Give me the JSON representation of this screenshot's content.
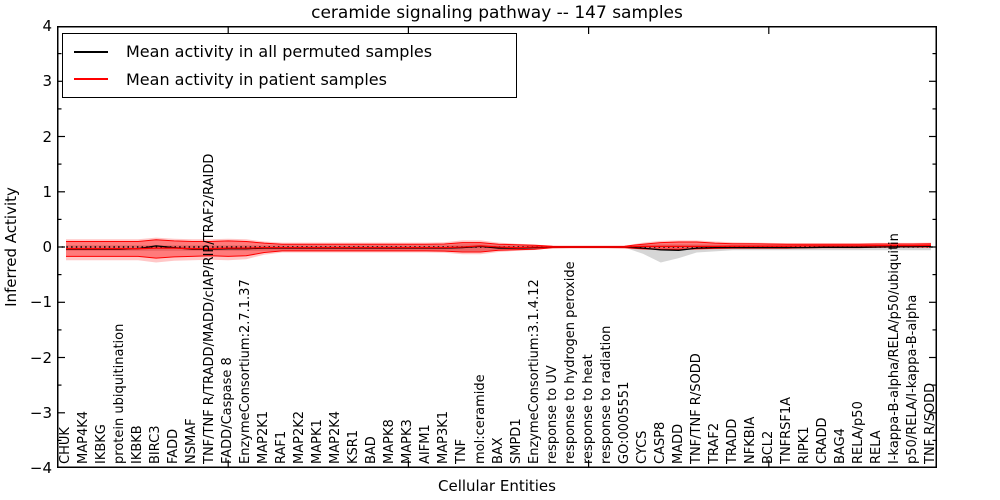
{
  "page": {
    "title": "ceramide signaling pathway -- 147 samples"
  },
  "axes": {
    "xlabel": "Cellular Entities",
    "ylabel": "Inferred Activity",
    "ytick_labels": [
      "4",
      "3",
      "2",
      "1",
      "0",
      "−1",
      "−2",
      "−3",
      "−4"
    ]
  },
  "legend": {
    "entries": [
      {
        "label": "Mean activity in all permuted samples",
        "color": "#000000"
      },
      {
        "label": "Mean activity in patient samples",
        "color": "#ff0000"
      }
    ],
    "position": "upper left"
  },
  "chart_data": {
    "type": "line",
    "title": "ceramide signaling pathway -- 147 samples",
    "xlabel": "Cellular Entities",
    "ylabel": "Inferred Activity",
    "ylim": [
      -4,
      4
    ],
    "yticks": [
      4,
      3,
      2,
      1,
      0,
      -1,
      -2,
      -3,
      -4
    ],
    "y_minor_tick_step": 0.5,
    "x_major_tick_values": [
      10,
      20,
      30,
      40
    ],
    "grid": false,
    "legend_position": "upper left",
    "zero_line": {
      "y": 0,
      "style": "dotted",
      "color": "#000000"
    },
    "categories": [
      "CHUK",
      "MAP4K4",
      "IKBKG",
      "protein ubiquitination",
      "IKBKB",
      "BIRC3",
      "FADD",
      "NSMAF",
      "TNF/TNF R/TRADD/MADD/cIAP/RIP/TRAF2/RAIDD",
      "FADD/Caspase 8",
      "EnzymeConsortium:2.7.1.37",
      "MAP2K1",
      "RAF1",
      "MAP2K2",
      "MAPK1",
      "MAP2K4",
      "KSR1",
      "BAD",
      "MAPK8",
      "MAPK3",
      "AIFM1",
      "MAP3K1",
      "TNF",
      "mol:ceramide",
      "BAX",
      "SMPD1",
      "EnzymeConsortium:3.1.4.12",
      "response to UV",
      "response to hydrogen peroxide",
      "response to heat",
      "response to radiation",
      "GO:0005551",
      "CYCS",
      "CASP8",
      "MADD",
      "TNF/TNF R/SODD",
      "TRAF2",
      "TRADD",
      "NFKBIA",
      "BCL2",
      "TNFRSF1A",
      "RIPK1",
      "CRADD",
      "BAG4",
      "RELA/p50",
      "RELA",
      "I-kappa-B-alpha/RELA/p50/ubiquitin",
      "p50/RELA/I-kappa-B-alpha",
      "TNF R/SODD"
    ],
    "series": [
      {
        "name": "Mean activity in all permuted samples",
        "color": "#000000",
        "values": [
          -0.04,
          -0.04,
          -0.04,
          -0.04,
          -0.03,
          0.02,
          -0.01,
          -0.04,
          -0.04,
          -0.03,
          -0.03,
          -0.02,
          -0.02,
          -0.02,
          -0.02,
          -0.02,
          -0.02,
          -0.02,
          -0.02,
          -0.02,
          -0.02,
          -0.02,
          -0.01,
          0.01,
          -0.02,
          -0.02,
          -0.01,
          0,
          0,
          0,
          0,
          0,
          -0.02,
          -0.05,
          -0.06,
          -0.02,
          -0.01,
          -0.01,
          -0.01,
          -0.01,
          -0.01,
          -0.01,
          -0.005,
          -0.005,
          -0.005,
          0,
          0.005,
          0.005,
          0.01
        ]
      },
      {
        "name": "Mean activity in patient samples",
        "color": "#ff0000",
        "values": [
          -0.03,
          -0.03,
          -0.03,
          -0.03,
          -0.03,
          -0.02,
          -0.02,
          -0.03,
          -0.03,
          -0.02,
          -0.02,
          -0.01,
          -0.01,
          -0.01,
          -0.01,
          -0.01,
          -0.01,
          -0.01,
          -0.01,
          -0.01,
          -0.01,
          -0.01,
          0,
          0.02,
          0,
          -0.01,
          0,
          0,
          0,
          0,
          0,
          0,
          0.01,
          0.01,
          0.01,
          0.01,
          0.01,
          0.015,
          0.015,
          0.015,
          0.015,
          0.02,
          0.02,
          0.02,
          0.02,
          0.025,
          0.025,
          0.025,
          0.03
        ]
      }
    ],
    "bands": [
      {
        "name": "permuted-samples-std-band",
        "color": "rgba(0,0,0,0.16)",
        "upper": [
          0.03,
          0.03,
          0.03,
          0.03,
          0.03,
          0.03,
          0.03,
          0.03,
          0.03,
          0.03,
          0.03,
          0.03,
          0.03,
          0.03,
          0.03,
          0.03,
          0.03,
          0.03,
          0.03,
          0.03,
          0.03,
          0.03,
          0.05,
          0.05,
          0.03,
          0.03,
          0.03,
          0.01,
          0.01,
          0.01,
          0.01,
          0.01,
          0.04,
          0.05,
          0.05,
          0.05,
          0.045,
          0.04,
          0.04,
          0.04,
          0.04,
          0.04,
          0.04,
          0.04,
          0.04,
          0.04,
          0.04,
          0.04,
          0.04
        ],
        "lower": [
          -0.07,
          -0.07,
          -0.07,
          -0.07,
          -0.07,
          -0.07,
          -0.07,
          -0.07,
          -0.07,
          -0.07,
          -0.07,
          -0.07,
          -0.07,
          -0.07,
          -0.07,
          -0.07,
          -0.07,
          -0.07,
          -0.07,
          -0.07,
          -0.07,
          -0.07,
          -0.08,
          -0.08,
          -0.05,
          -0.05,
          -0.05,
          -0.01,
          -0.01,
          -0.01,
          -0.01,
          -0.01,
          -0.12,
          -0.28,
          -0.2,
          -0.1,
          -0.08,
          -0.06,
          -0.06,
          -0.06,
          -0.06,
          -0.06,
          -0.06,
          -0.06,
          -0.06,
          -0.06,
          -0.06,
          -0.06,
          -0.06
        ]
      },
      {
        "name": "patient-samples-outer-band",
        "color": "rgba(255,0,0,0.22)",
        "upper": [
          0.14,
          0.14,
          0.14,
          0.14,
          0.14,
          0.17,
          0.15,
          0.14,
          0.14,
          0.15,
          0.14,
          0.1,
          0.08,
          0.08,
          0.08,
          0.08,
          0.08,
          0.08,
          0.08,
          0.08,
          0.08,
          0.085,
          0.12,
          0.12,
          0.08,
          0.06,
          0.045,
          0.02,
          0.015,
          0.015,
          0.015,
          0.02,
          0.08,
          0.11,
          0.12,
          0.12,
          0.1,
          0.085,
          0.08,
          0.075,
          0.07,
          0.07,
          0.07,
          0.07,
          0.07,
          0.075,
          0.075,
          0.075,
          0.08
        ],
        "lower": [
          -0.24,
          -0.24,
          -0.24,
          -0.24,
          -0.24,
          -0.28,
          -0.25,
          -0.24,
          -0.23,
          -0.24,
          -0.22,
          -0.14,
          -0.1,
          -0.1,
          -0.1,
          -0.1,
          -0.1,
          -0.1,
          -0.1,
          -0.1,
          -0.1,
          -0.105,
          -0.13,
          -0.13,
          -0.09,
          -0.07,
          -0.055,
          -0.02,
          -0.015,
          -0.015,
          -0.015,
          -0.02,
          -0.05,
          -0.06,
          -0.06,
          -0.05,
          -0.04,
          -0.035,
          -0.03,
          -0.03,
          -0.03,
          -0.025,
          -0.02,
          -0.02,
          -0.02,
          -0.015,
          -0.01,
          -0.01,
          -0.01
        ]
      },
      {
        "name": "patient-samples-inner-band",
        "color": "rgba(255,0,0,0.38)",
        "edge": "#ff0000",
        "upper": [
          0.1,
          0.1,
          0.1,
          0.1,
          0.1,
          0.13,
          0.11,
          0.1,
          0.1,
          0.11,
          0.1,
          0.07,
          0.05,
          0.05,
          0.05,
          0.05,
          0.05,
          0.05,
          0.05,
          0.05,
          0.05,
          0.055,
          0.08,
          0.08,
          0.05,
          0.04,
          0.03,
          0.015,
          0.01,
          0.01,
          0.01,
          0.015,
          0.05,
          0.08,
          0.09,
          0.09,
          0.07,
          0.06,
          0.06,
          0.055,
          0.05,
          0.05,
          0.05,
          0.05,
          0.05,
          0.055,
          0.055,
          0.055,
          0.06
        ],
        "lower": [
          -0.17,
          -0.17,
          -0.17,
          -0.17,
          -0.17,
          -0.2,
          -0.18,
          -0.17,
          -0.16,
          -0.17,
          -0.16,
          -0.1,
          -0.07,
          -0.07,
          -0.07,
          -0.07,
          -0.07,
          -0.07,
          -0.07,
          -0.07,
          -0.07,
          -0.075,
          -0.09,
          -0.09,
          -0.06,
          -0.05,
          -0.04,
          -0.015,
          -0.01,
          -0.01,
          -0.01,
          -0.015,
          -0.03,
          -0.04,
          -0.04,
          -0.03,
          -0.025,
          -0.02,
          -0.02,
          -0.02,
          -0.02,
          -0.015,
          -0.01,
          -0.01,
          -0.01,
          -0.005,
          0,
          0,
          0
        ]
      }
    ]
  }
}
